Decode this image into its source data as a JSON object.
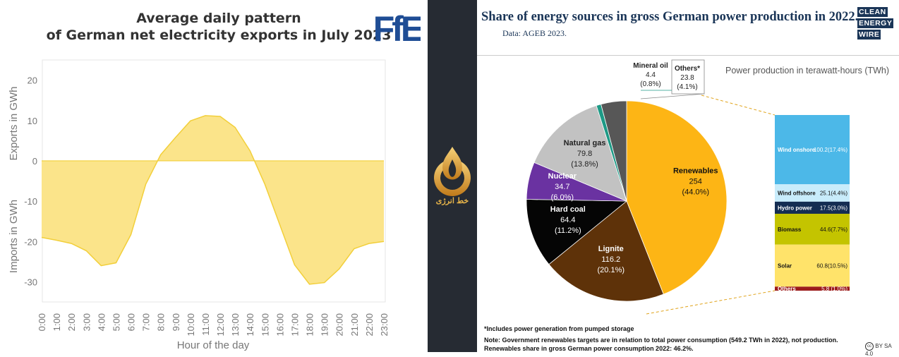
{
  "left": {
    "title_line1": "Average daily pattern",
    "title_line2": "of German net electricity exports in July 2023",
    "logo_text": "FfE",
    "ylabel_top": "Exports in GWh",
    "ylabel_bottom": "Imports in GWh",
    "xlabel": "Hour of the day"
  },
  "chart_data": [
    {
      "type": "area",
      "title": "Average daily pattern of German net electricity exports in July 2023",
      "xlabel": "Hour of the day",
      "ylabel": "Exports in GWh / Imports in GWh",
      "ylim": [
        -35,
        25
      ],
      "yticks": [
        20,
        10,
        0,
        -10,
        -20,
        -30
      ],
      "x": [
        "0:00",
        "1:00",
        "2:00",
        "3:00",
        "4:00",
        "5:00",
        "6:00",
        "7:00",
        "8:00",
        "9:00",
        "10:00",
        "11:00",
        "12:00",
        "13:00",
        "14:00",
        "15:00",
        "16:00",
        "17:00",
        "18:00",
        "19:00",
        "20:00",
        "21:00",
        "22:00",
        "23:00"
      ],
      "values": [
        -19,
        -19.7,
        -20.5,
        -22.3,
        -26,
        -25.3,
        -18.3,
        -5.8,
        1.5,
        5.8,
        9.9,
        11.2,
        11,
        8.3,
        2.5,
        -5.8,
        -15.8,
        -25.8,
        -30.6,
        -30.2,
        -26.8,
        -21.8,
        -20.5,
        -20
      ]
    },
    {
      "type": "pie",
      "title": "Share of energy sources in gross German power production in 2022.",
      "subtitle": "Data: AGEB 2023.",
      "unit_label": "Power production in terawatt-hours (TWh)",
      "slices": [
        {
          "name": "Renewables",
          "value": 254,
          "value_text": "254",
          "pct": "(44.0%)",
          "color": "#fdb515"
        },
        {
          "name": "Lignite",
          "value": 116.2,
          "value_text": "116.2",
          "pct": "(20.1%)",
          "color": "#5e3209"
        },
        {
          "name": "Hard coal",
          "value": 64.4,
          "value_text": "64.4",
          "pct": "(11.2%)",
          "color": "#050505"
        },
        {
          "name": "Nuclear",
          "value": 34.7,
          "value_text": "34.7",
          "pct": "(6.0%)",
          "color": "#6a32a1"
        },
        {
          "name": "Natural gas",
          "value": 79.8,
          "value_text": "79.8",
          "pct": "(13.8%)",
          "color": "#c2c2c2"
        },
        {
          "name": "Mineral oil",
          "value": 4.4,
          "value_text": "4.4",
          "pct": "(0.8%)",
          "color": "#1e9a86"
        },
        {
          "name": "Others*",
          "value": 23.8,
          "value_text": "23.8",
          "pct": "(4.1%)",
          "color": "#575757"
        }
      ],
      "breakdown": [
        {
          "name": "Wind onshore",
          "value": 100.2,
          "label": "100.2(17.4%)",
          "color": "#4cb8e8",
          "text_color": "#ffffff"
        },
        {
          "name": "Wind offshore",
          "value": 25.1,
          "label": "25.1(4.4%)",
          "color": "#c8ecfb",
          "text_color": "#111111"
        },
        {
          "name": "Hydro power",
          "value": 17.5,
          "label": "17.5(3.0%)",
          "color": "#142d52",
          "text_color": "#ffffff"
        },
        {
          "name": "Biomass",
          "value": 44.6,
          "label": "44.6(7.7%)",
          "color": "#c4c400",
          "text_color": "#111111"
        },
        {
          "name": "Solar",
          "value": 60.8,
          "label": "60.8(10.5%)",
          "color": "#ffe36a",
          "text_color": "#111111"
        },
        {
          "name": "Others",
          "value": 5.8,
          "label": "5.8 (1.0%)",
          "color": "#9c1c1c",
          "text_color": "#ffffff"
        }
      ]
    }
  ],
  "right": {
    "logo_lines": [
      "CLEAN",
      "ENERGY",
      "WIRE"
    ],
    "footnote1": "*Includes power generation from pumped storage",
    "footnote2": "Note: Government renewables targets are in relation to total power consumption (549.2 TWh in 2022), not production.",
    "footnote3": "Renewables share in gross German power consumption 2022: 46.2%.",
    "license": "BY SA 4.0"
  },
  "middle": {
    "logo_text": "خط انرژی"
  }
}
